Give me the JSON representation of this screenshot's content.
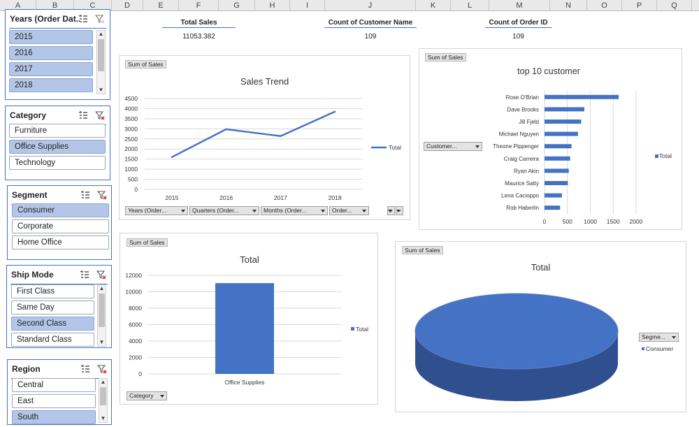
{
  "columns": [
    "A",
    "B",
    "C",
    "D",
    "E",
    "F",
    "G",
    "H",
    "I",
    "J",
    "K",
    "L",
    "M",
    "N",
    "O",
    "P",
    "Q"
  ],
  "slicers": {
    "years": {
      "title": "Years (Order Dat...",
      "items": [
        {
          "label": "2015",
          "selected": true
        },
        {
          "label": "2016",
          "selected": true
        },
        {
          "label": "2017",
          "selected": true
        },
        {
          "label": "2018",
          "selected": true
        }
      ]
    },
    "category": {
      "title": "Category",
      "items": [
        {
          "label": "Furniture",
          "selected": false
        },
        {
          "label": "Office Supplies",
          "selected": true
        },
        {
          "label": "Technology",
          "selected": false
        }
      ]
    },
    "segment": {
      "title": "Segment",
      "items": [
        {
          "label": "Consumer",
          "selected": true
        },
        {
          "label": "Corporate",
          "selected": false
        },
        {
          "label": "Home Office",
          "selected": false
        }
      ]
    },
    "ship_mode": {
      "title": "Ship Mode",
      "items": [
        {
          "label": "First Class",
          "selected": false
        },
        {
          "label": "Same Day",
          "selected": false
        },
        {
          "label": "Second Class",
          "selected": true
        },
        {
          "label": "Standard Class",
          "selected": false
        }
      ]
    },
    "region": {
      "title": "Region",
      "items": [
        {
          "label": "Central",
          "selected": false
        },
        {
          "label": "East",
          "selected": false
        },
        {
          "label": "South",
          "selected": true
        }
      ]
    }
  },
  "kpis": {
    "total_sales": {
      "label": "Total Sales",
      "value": "11053.382"
    },
    "count_customer": {
      "label": "Count of Customer Name",
      "value": "109"
    },
    "count_order": {
      "label": "Count of Order ID",
      "value": "109"
    }
  },
  "sales_trend": {
    "field_button": "Sum of Sales",
    "legend": "Total",
    "axis_buttons": [
      "Years (Order...",
      "Quarters (Order...",
      "Months (Order...",
      "Order..."
    ],
    "zoom_buttons": [
      "+",
      "−"
    ]
  },
  "top10": {
    "field_button": "Sum of Sales",
    "filter_button": "Customer...",
    "legend": "Total"
  },
  "category_chart": {
    "field_button": "Sum of Sales",
    "filter_button": "Category",
    "legend": "Total"
  },
  "segment_pie": {
    "field_button": "Sum of Sales",
    "filter_button": "Segme...",
    "legend": "Consumer"
  },
  "colors": {
    "accent": "#4472c4",
    "selected": "#b4c6e7",
    "series": "#4472c4"
  },
  "chart_data": [
    {
      "type": "line",
      "title": "Sales Trend",
      "categories": [
        "2015",
        "2016",
        "2017",
        "2018"
      ],
      "series": [
        {
          "name": "Total",
          "values": [
            1600,
            2980,
            2640,
            3850
          ]
        }
      ],
      "ylim": [
        0,
        4500
      ],
      "yticks": [
        0,
        500,
        1000,
        1500,
        2000,
        2500,
        3000,
        3500,
        4000,
        4500
      ],
      "grid": true,
      "legend": "right"
    },
    {
      "type": "bar",
      "orientation": "horizontal",
      "title": "top 10  customer",
      "categories": [
        "Rose O'Brian",
        "Dave Brooks",
        "Jill Fjeld",
        "Michael Nguyen",
        "Theone Pippenger",
        "Craig Carreira",
        "Ryan Akin",
        "Maurice Satty",
        "Lena Cacioppo",
        "Rob Haberlin"
      ],
      "series": [
        {
          "name": "Total",
          "values": [
            1620,
            870,
            800,
            730,
            590,
            560,
            530,
            510,
            380,
            340
          ]
        }
      ],
      "xlim": [
        0,
        2000
      ],
      "xticks": [
        0,
        500,
        1000,
        1500,
        2000
      ],
      "grid": true,
      "legend": "right"
    },
    {
      "type": "bar",
      "title": "Total",
      "categories": [
        "Office Supplies"
      ],
      "series": [
        {
          "name": "Total",
          "values": [
            11053.382
          ]
        }
      ],
      "ylim": [
        0,
        12000
      ],
      "yticks": [
        0,
        2000,
        4000,
        6000,
        8000,
        10000,
        12000
      ],
      "grid": true,
      "legend": "right"
    },
    {
      "type": "pie",
      "title": "Total",
      "categories": [
        "Consumer"
      ],
      "values": [
        11053.382
      ],
      "legend": "right"
    }
  ]
}
